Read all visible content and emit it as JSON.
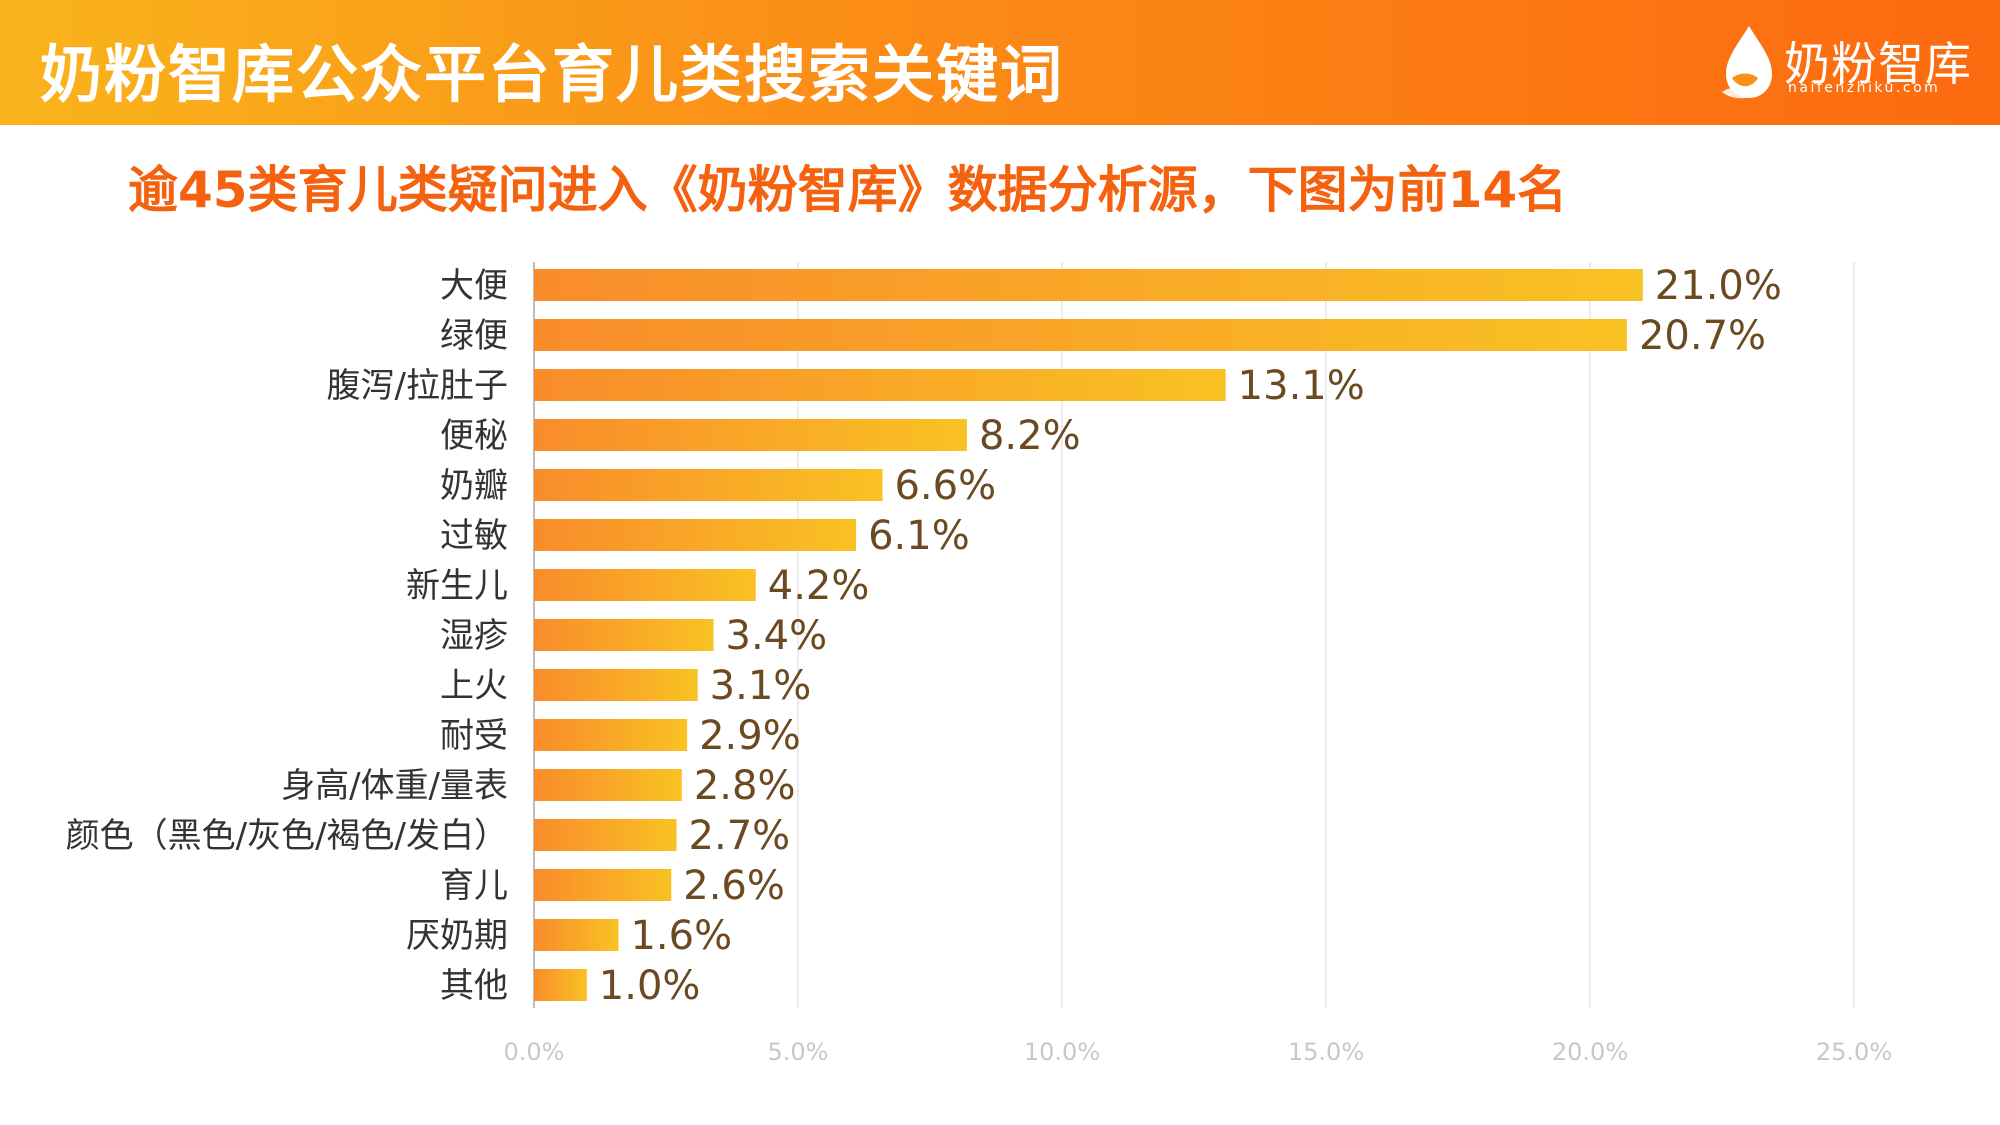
{
  "header": {
    "title": "奶粉智库公众平台育儿类搜索关键词",
    "logo_name": "奶粉智库",
    "logo_url": "naifenzhiku.com"
  },
  "subtitle": "逾45类育儿类疑问进入《奶粉智库》数据分析源，下图为前14名",
  "colors": {
    "header_start": "#f9b41c",
    "header_end": "#fc6a10",
    "subtitle": "#f4620f",
    "bar_start": "#f98c2a",
    "bar_end": "#f9c224",
    "value_label": "#6b4a22"
  },
  "chart_data": {
    "type": "bar",
    "orientation": "horizontal",
    "title": "",
    "xlabel": "",
    "ylabel": "",
    "categories": [
      "大便",
      "绿便",
      "腹泻/拉肚子",
      "便秘",
      "奶瓣",
      "过敏",
      "新生儿",
      "湿疹",
      "上火",
      "耐受",
      "身高/体重/量表",
      "颜色（黑色/灰色/褐色/发白）",
      "育儿",
      "厌奶期",
      "其他"
    ],
    "values": [
      21.0,
      20.7,
      13.1,
      8.2,
      6.6,
      6.1,
      4.2,
      3.4,
      3.1,
      2.9,
      2.8,
      2.7,
      2.6,
      1.6,
      1.0
    ],
    "value_labels": [
      "21.0%",
      "20.7%",
      "13.1%",
      "8.2%",
      "6.6%",
      "6.1%",
      "4.2%",
      "3.4%",
      "3.1%",
      "2.9%",
      "2.8%",
      "2.7%",
      "2.6%",
      "1.6%",
      "1.0%"
    ],
    "xlim": [
      0,
      25
    ],
    "ticks": [
      0,
      5,
      10,
      15,
      20,
      25
    ],
    "tick_labels": [
      "0.0%",
      "5.0%",
      "10.0%",
      "15.0%",
      "20.0%",
      "25.0%"
    ],
    "grid": true
  }
}
